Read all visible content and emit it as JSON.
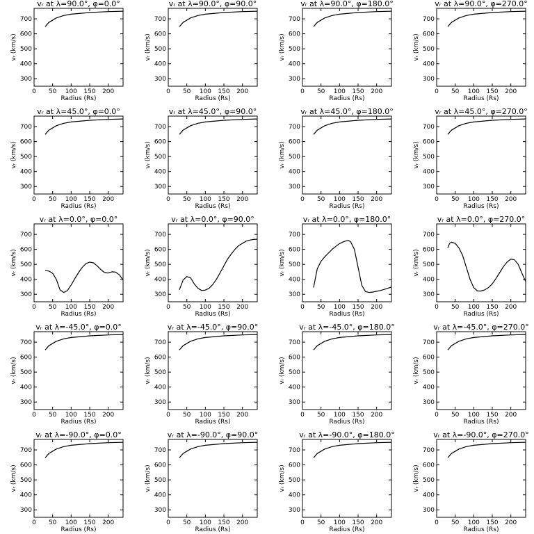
{
  "chart_data": [
    {
      "type": "line",
      "title": "vᵣ at λ=90.0°, φ=0.0°",
      "xlabel": "Radius (Rs)",
      "ylabel": "vᵣ (km/s)",
      "xlim": [
        0,
        240
      ],
      "ylim": [
        250,
        770
      ],
      "xticks": [
        0,
        50,
        100,
        150,
        200
      ],
      "yticks": [
        300,
        400,
        500,
        600,
        700
      ],
      "x": [
        30,
        40,
        60,
        80,
        100,
        150,
        200,
        240
      ],
      "y": [
        648,
        676,
        706,
        722,
        731,
        742,
        748,
        751
      ]
    },
    {
      "type": "line",
      "title": "vᵣ at λ=90.0°, φ=90.0°",
      "xlabel": "Radius (Rs)",
      "ylabel": "vᵣ (km/s)",
      "xlim": [
        0,
        240
      ],
      "ylim": [
        250,
        770
      ],
      "xticks": [
        0,
        50,
        100,
        150,
        200
      ],
      "yticks": [
        300,
        400,
        500,
        600,
        700
      ],
      "x": [
        30,
        40,
        60,
        80,
        100,
        150,
        200,
        240
      ],
      "y": [
        648,
        676,
        706,
        722,
        731,
        742,
        748,
        751
      ]
    },
    {
      "type": "line",
      "title": "vᵣ at λ=90.0°, φ=180.0°",
      "xlabel": "Radius (Rs)",
      "ylabel": "vᵣ (km/s)",
      "xlim": [
        0,
        240
      ],
      "ylim": [
        250,
        770
      ],
      "xticks": [
        0,
        50,
        100,
        150,
        200
      ],
      "yticks": [
        300,
        400,
        500,
        600,
        700
      ],
      "x": [
        30,
        40,
        60,
        80,
        100,
        150,
        200,
        240
      ],
      "y": [
        648,
        676,
        706,
        722,
        731,
        742,
        748,
        751
      ]
    },
    {
      "type": "line",
      "title": "vᵣ at λ=90.0°, φ=270.0°",
      "xlabel": "Radius (Rs)",
      "ylabel": "vᵣ (km/s)",
      "xlim": [
        0,
        240
      ],
      "ylim": [
        250,
        770
      ],
      "xticks": [
        0,
        50,
        100,
        150,
        200
      ],
      "yticks": [
        300,
        400,
        500,
        600,
        700
      ],
      "x": [
        30,
        40,
        60,
        80,
        100,
        150,
        200,
        240
      ],
      "y": [
        648,
        676,
        706,
        722,
        731,
        742,
        748,
        751
      ]
    },
    {
      "type": "line",
      "title": "vᵣ at λ=45.0°, φ=0.0°",
      "xlabel": "Radius (Rs)",
      "ylabel": "vᵣ (km/s)",
      "xlim": [
        0,
        240
      ],
      "ylim": [
        250,
        770
      ],
      "xticks": [
        0,
        50,
        100,
        150,
        200
      ],
      "yticks": [
        300,
        400,
        500,
        600,
        700
      ],
      "x": [
        30,
        40,
        60,
        80,
        100,
        150,
        200,
        240
      ],
      "y": [
        648,
        676,
        706,
        722,
        731,
        742,
        748,
        751
      ]
    },
    {
      "type": "line",
      "title": "vᵣ at λ=45.0°, φ=90.0°",
      "xlabel": "Radius (Rs)",
      "ylabel": "vᵣ (km/s)",
      "xlim": [
        0,
        240
      ],
      "ylim": [
        250,
        770
      ],
      "xticks": [
        0,
        50,
        100,
        150,
        200
      ],
      "yticks": [
        300,
        400,
        500,
        600,
        700
      ],
      "x": [
        30,
        40,
        60,
        80,
        100,
        150,
        200,
        240
      ],
      "y": [
        648,
        676,
        706,
        722,
        731,
        742,
        748,
        751
      ]
    },
    {
      "type": "line",
      "title": "vᵣ at λ=45.0°, φ=180.0°",
      "xlabel": "Radius (Rs)",
      "ylabel": "vᵣ (km/s)",
      "xlim": [
        0,
        240
      ],
      "ylim": [
        250,
        770
      ],
      "xticks": [
        0,
        50,
        100,
        150,
        200
      ],
      "yticks": [
        300,
        400,
        500,
        600,
        700
      ],
      "x": [
        30,
        40,
        60,
        80,
        100,
        150,
        200,
        240
      ],
      "y": [
        648,
        676,
        706,
        722,
        731,
        742,
        748,
        751
      ]
    },
    {
      "type": "line",
      "title": "vᵣ at λ=45.0°, φ=270.0°",
      "xlabel": "Radius (Rs)",
      "ylabel": "vᵣ (km/s)",
      "xlim": [
        0,
        240
      ],
      "ylim": [
        250,
        770
      ],
      "xticks": [
        0,
        50,
        100,
        150,
        200
      ],
      "yticks": [
        300,
        400,
        500,
        600,
        700
      ],
      "x": [
        30,
        40,
        60,
        80,
        100,
        150,
        200,
        240
      ],
      "y": [
        648,
        676,
        706,
        722,
        731,
        742,
        748,
        751
      ]
    },
    {
      "type": "line",
      "title": "vᵣ at λ=0.0°, φ=0.0°",
      "xlabel": "Radius (Rs)",
      "ylabel": "vᵣ (km/s)",
      "xlim": [
        0,
        240
      ],
      "ylim": [
        250,
        770
      ],
      "xticks": [
        0,
        50,
        100,
        150,
        200
      ],
      "yticks": [
        300,
        400,
        500,
        600,
        700
      ],
      "x": [
        30,
        40,
        50,
        60,
        70,
        80,
        90,
        100,
        110,
        120,
        130,
        140,
        150,
        160,
        170,
        180,
        190,
        200,
        210,
        220,
        230,
        240
      ],
      "y": [
        458,
        455,
        440,
        400,
        330,
        312,
        325,
        362,
        405,
        445,
        480,
        505,
        515,
        510,
        490,
        465,
        445,
        442,
        450,
        448,
        430,
        395
      ]
    },
    {
      "type": "line",
      "title": "vᵣ at λ=0.0°, φ=90.0°",
      "xlabel": "Radius (Rs)",
      "ylabel": "vᵣ (km/s)",
      "xlim": [
        0,
        240
      ],
      "ylim": [
        250,
        770
      ],
      "xticks": [
        0,
        50,
        100,
        150,
        200
      ],
      "yticks": [
        300,
        400,
        500,
        600,
        700
      ],
      "x": [
        30,
        40,
        50,
        60,
        70,
        80,
        90,
        100,
        110,
        120,
        130,
        140,
        150,
        160,
        170,
        180,
        190,
        200,
        210,
        220,
        230,
        240
      ],
      "y": [
        330,
        395,
        418,
        410,
        370,
        340,
        325,
        328,
        340,
        365,
        400,
        445,
        490,
        535,
        570,
        600,
        625,
        640,
        655,
        662,
        666,
        668
      ]
    },
    {
      "type": "line",
      "title": "vᵣ at λ=0.0°, φ=180.0°",
      "xlabel": "Radius (Rs)",
      "ylabel": "vᵣ (km/s)",
      "xlim": [
        0,
        240
      ],
      "ylim": [
        250,
        770
      ],
      "xticks": [
        0,
        50,
        100,
        150,
        200
      ],
      "yticks": [
        300,
        400,
        500,
        600,
        700
      ],
      "x": [
        30,
        35,
        40,
        50,
        60,
        70,
        80,
        90,
        100,
        110,
        120,
        125,
        130,
        140,
        150,
        160,
        170,
        180,
        190,
        200,
        210,
        220,
        230,
        240
      ],
      "y": [
        345,
        410,
        470,
        520,
        550,
        575,
        600,
        620,
        638,
        650,
        658,
        658,
        650,
        600,
        480,
        360,
        318,
        312,
        315,
        320,
        325,
        332,
        340,
        348
      ]
    },
    {
      "type": "line",
      "title": "vᵣ at λ=0.0°, φ=270.0°",
      "xlabel": "Radius (Rs)",
      "ylabel": "vᵣ (km/s)",
      "xlim": [
        0,
        240
      ],
      "ylim": [
        250,
        770
      ],
      "xticks": [
        0,
        50,
        100,
        150,
        200
      ],
      "yticks": [
        300,
        400,
        500,
        600,
        700
      ],
      "x": [
        30,
        35,
        40,
        50,
        60,
        70,
        80,
        90,
        100,
        110,
        120,
        130,
        140,
        150,
        160,
        170,
        180,
        190,
        200,
        210,
        220,
        230,
        240
      ],
      "y": [
        610,
        640,
        648,
        640,
        610,
        560,
        480,
        400,
        345,
        322,
        322,
        330,
        345,
        370,
        405,
        445,
        485,
        515,
        535,
        530,
        500,
        440,
        385
      ]
    },
    {
      "type": "line",
      "title": "vᵣ at λ=-45.0°, φ=0.0°",
      "xlabel": "Radius (Rs)",
      "ylabel": "vᵣ (km/s)",
      "xlim": [
        0,
        240
      ],
      "ylim": [
        250,
        770
      ],
      "xticks": [
        0,
        50,
        100,
        150,
        200
      ],
      "yticks": [
        300,
        400,
        500,
        600,
        700
      ],
      "x": [
        30,
        40,
        60,
        80,
        100,
        150,
        200,
        240
      ],
      "y": [
        648,
        676,
        706,
        722,
        731,
        742,
        748,
        751
      ]
    },
    {
      "type": "line",
      "title": "vᵣ at λ=-45.0°, φ=90.0°",
      "xlabel": "Radius (Rs)",
      "ylabel": "vᵣ (km/s)",
      "xlim": [
        0,
        240
      ],
      "ylim": [
        250,
        770
      ],
      "xticks": [
        0,
        50,
        100,
        150,
        200
      ],
      "yticks": [
        300,
        400,
        500,
        600,
        700
      ],
      "x": [
        30,
        40,
        60,
        80,
        100,
        150,
        200,
        240
      ],
      "y": [
        648,
        676,
        706,
        722,
        731,
        742,
        748,
        751
      ]
    },
    {
      "type": "line",
      "title": "vᵣ at λ=-45.0°, φ=180.0°",
      "xlabel": "Radius (Rs)",
      "ylabel": "vᵣ (km/s)",
      "xlim": [
        0,
        240
      ],
      "ylim": [
        250,
        770
      ],
      "xticks": [
        0,
        50,
        100,
        150,
        200
      ],
      "yticks": [
        300,
        400,
        500,
        600,
        700
      ],
      "x": [
        30,
        40,
        60,
        80,
        100,
        150,
        200,
        240
      ],
      "y": [
        648,
        676,
        706,
        722,
        731,
        742,
        748,
        751
      ]
    },
    {
      "type": "line",
      "title": "vᵣ at λ=-45.0°, φ=270.0°",
      "xlabel": "Radius (Rs)",
      "ylabel": "vᵣ (km/s)",
      "xlim": [
        0,
        240
      ],
      "ylim": [
        250,
        770
      ],
      "xticks": [
        0,
        50,
        100,
        150,
        200
      ],
      "yticks": [
        300,
        400,
        500,
        600,
        700
      ],
      "x": [
        30,
        40,
        60,
        80,
        100,
        150,
        200,
        240
      ],
      "y": [
        648,
        676,
        706,
        722,
        731,
        742,
        748,
        751
      ]
    },
    {
      "type": "line",
      "title": "vᵣ at λ=-90.0°, φ=0.0°",
      "xlabel": "Radius (Rs)",
      "ylabel": "vᵣ (km/s)",
      "xlim": [
        0,
        240
      ],
      "ylim": [
        250,
        770
      ],
      "xticks": [
        0,
        50,
        100,
        150,
        200
      ],
      "yticks": [
        300,
        400,
        500,
        600,
        700
      ],
      "x": [
        30,
        40,
        60,
        80,
        100,
        150,
        200,
        240
      ],
      "y": [
        648,
        676,
        706,
        722,
        731,
        742,
        748,
        751
      ]
    },
    {
      "type": "line",
      "title": "vᵣ at λ=-90.0°, φ=90.0°",
      "xlabel": "Radius (Rs)",
      "ylabel": "vᵣ (km/s)",
      "xlim": [
        0,
        240
      ],
      "ylim": [
        250,
        770
      ],
      "xticks": [
        0,
        50,
        100,
        150,
        200
      ],
      "yticks": [
        300,
        400,
        500,
        600,
        700
      ],
      "x": [
        30,
        40,
        60,
        80,
        100,
        150,
        200,
        240
      ],
      "y": [
        648,
        676,
        706,
        722,
        731,
        742,
        748,
        751
      ]
    },
    {
      "type": "line",
      "title": "vᵣ at λ=-90.0°, φ=180.0°",
      "xlabel": "Radius (Rs)",
      "ylabel": "vᵣ (km/s)",
      "xlim": [
        0,
        240
      ],
      "ylim": [
        250,
        770
      ],
      "xticks": [
        0,
        50,
        100,
        150,
        200
      ],
      "yticks": [
        300,
        400,
        500,
        600,
        700
      ],
      "x": [
        30,
        40,
        60,
        80,
        100,
        150,
        200,
        240
      ],
      "y": [
        648,
        676,
        706,
        722,
        731,
        742,
        748,
        751
      ]
    },
    {
      "type": "line",
      "title": "vᵣ at λ=-90.0°, φ=270.0°",
      "xlabel": "Radius (Rs)",
      "ylabel": "vᵣ (km/s)",
      "xlim": [
        0,
        240
      ],
      "ylim": [
        250,
        770
      ],
      "xticks": [
        0,
        50,
        100,
        150,
        200
      ],
      "yticks": [
        300,
        400,
        500,
        600,
        700
      ],
      "x": [
        30,
        40,
        60,
        80,
        100,
        150,
        200,
        240
      ],
      "y": [
        648,
        676,
        706,
        722,
        731,
        742,
        748,
        751
      ]
    }
  ]
}
